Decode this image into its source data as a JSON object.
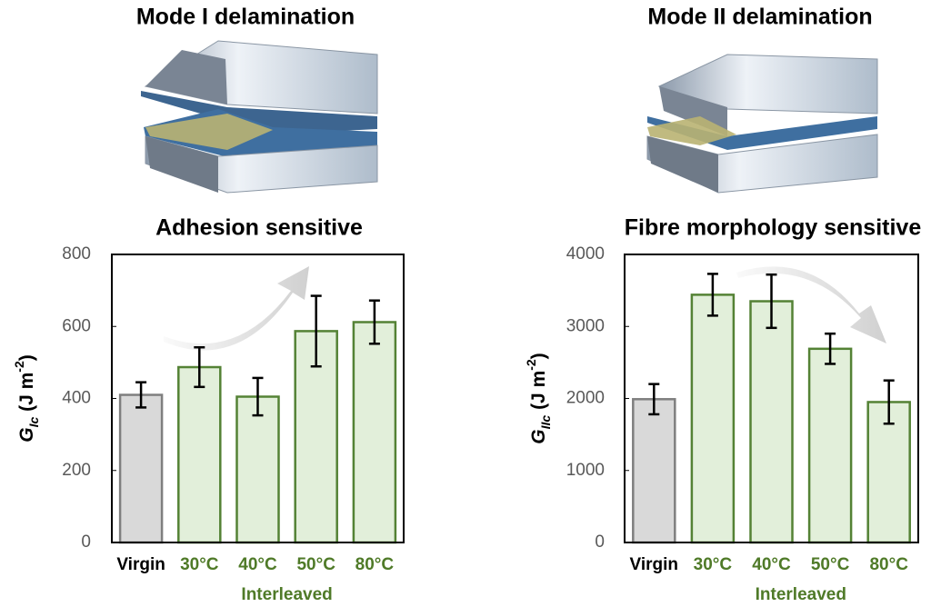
{
  "chart_data": [
    {
      "type": "bar",
      "header": "Mode I delamination",
      "title": "Adhesion sensitive",
      "ylabel_parts": [
        "G",
        "Ic",
        " (J m",
        "-2",
        ")"
      ],
      "categories": [
        "Virgin",
        "30°C",
        "40°C",
        "50°C",
        "80°C"
      ],
      "group_label": "Interleaved",
      "values": [
        410,
        487,
        405,
        587,
        612
      ],
      "errors": [
        35,
        55,
        52,
        98,
        60
      ],
      "colors": [
        "#d9d9d9",
        "#e2efda",
        "#e2efda",
        "#e2efda",
        "#e2efda"
      ],
      "edge_colors": [
        "#7f7f7f",
        "#548235",
        "#548235",
        "#548235",
        "#548235"
      ],
      "label_colors": [
        "#000000",
        "#4f7a28",
        "#4f7a28",
        "#4f7a28",
        "#4f7a28"
      ],
      "ylim": [
        0,
        800
      ],
      "yticks": [
        0,
        200,
        400,
        600,
        800
      ]
    },
    {
      "type": "bar",
      "header": "Mode II delamination",
      "title": "Fibre morphology sensitive",
      "ylabel_parts": [
        "G",
        "IIc",
        " (J m",
        "-2",
        ")"
      ],
      "categories": [
        "Virgin",
        "30°C",
        "40°C",
        "50°C",
        "80°C"
      ],
      "group_label": "Interleaved",
      "values": [
        1990,
        3440,
        3350,
        2690,
        1950
      ],
      "errors": [
        210,
        290,
        370,
        210,
        300
      ],
      "colors": [
        "#d9d9d9",
        "#e2efda",
        "#e2efda",
        "#e2efda",
        "#e2efda"
      ],
      "edge_colors": [
        "#7f7f7f",
        "#548235",
        "#548235",
        "#548235",
        "#548235"
      ],
      "label_colors": [
        "#000000",
        "#4f7a28",
        "#4f7a28",
        "#4f7a28",
        "#4f7a28"
      ],
      "ylim": [
        0,
        4000
      ],
      "yticks": [
        0,
        1000,
        2000,
        3000,
        4000
      ]
    }
  ]
}
